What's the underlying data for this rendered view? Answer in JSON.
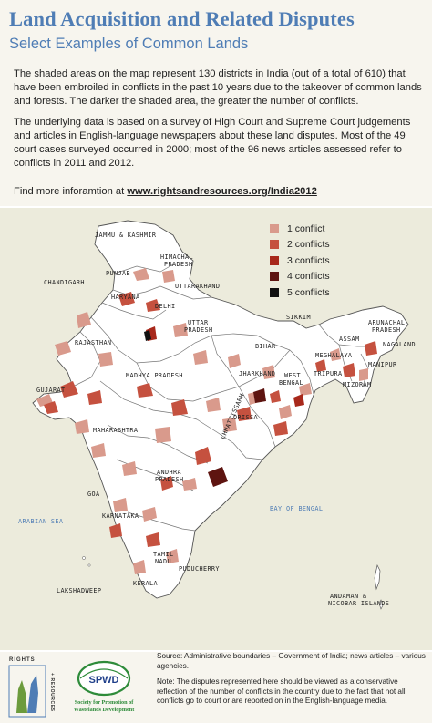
{
  "title": "Land Acquisition and Related Disputes",
  "subtitle": "Select Examples of Common Lands",
  "paragraphs": {
    "p1": "The shaded areas on the map represent 130 districts in India (out of a total of 610) that have been embroiled in conflicts in the past 10 years due to the takeover of common lands and forests. The darker the shaded area, the greater the number of conflicts.",
    "p2": "The underlying data is based on a survey of High Court and Supreme Court judgements and articles in English-language newspapers about these land disputes. Most of the 49 court cases surveyed occurred in 2000; most of the 96 news articles assessed refer to conflicts in 2011 and 2012.",
    "p3_prefix": "Find more inforamtion at ",
    "p3_link": "www.rightsandresources.org/India2012"
  },
  "legend": [
    {
      "label": "1 conflict",
      "color": "#d99a8c"
    },
    {
      "label": "2 conflicts",
      "color": "#c5513f"
    },
    {
      "label": "3 conflicts",
      "color": "#a8281b"
    },
    {
      "label": "4 conflicts",
      "color": "#5e1410"
    },
    {
      "label": "5 conflicts",
      "color": "#111111"
    }
  ],
  "map": {
    "land_color": "#ffffff",
    "region_labels": {
      "jammu_kashmir": "JAMMU & KASHMIR",
      "himachal_1": "HIMACHAL",
      "himachal_2": "PRADESH",
      "punjab": "PUNJAB",
      "chandigarh": "CHANDIGARH",
      "uttarakhand": "UTTARAKHAND",
      "haryana": "HARYANA",
      "delhi": "DELHI",
      "uttar_1": "UTTAR",
      "uttar_2": "PRADESH",
      "rajasthan": "RAJASTHAN",
      "sikkim": "SIKKIM",
      "arunachal_1": "ARUNACHAL",
      "arunachal_2": "PRADESH",
      "assam": "ASSAM",
      "nagaland": "NAGALAND",
      "bihar": "BIHAR",
      "meghalaya": "MEGHALAYA",
      "manipur": "MANIPUR",
      "jharkhand": "JHARKHAND",
      "tripura": "TRIPURA",
      "west_1": "WEST",
      "west_2": "BENGAL",
      "mizoram": "MIZORAM",
      "madhya": "MADHYA PRADESH",
      "gujarat": "GUJARAT",
      "chhattisgarh": "CHHATTISGARH",
      "orissa": "ORISSA",
      "maharashtra": "MAHARASHTRA",
      "andhra_1": "ANDHRA",
      "andhra_2": "PRADESH",
      "goa": "GOA",
      "karnataka": "KARNATAKA",
      "puducherry": "PUDUCHERRY",
      "tamil_1": "TAMIL",
      "tamil_2": "NADU",
      "kerala": "KERALA",
      "lakshadweep": "LAKSHADWEEP",
      "andaman_1": "ANDAMAN &",
      "andaman_2": "NICOBAR ISLANDS"
    },
    "seas": {
      "arabian": "ARABIAN SEA",
      "bengal": "BAY OF BENGAL"
    }
  },
  "footer": {
    "source": "Source: Administrative boundaries – Government of India; news articles – various agencies.",
    "note": "Note: The disputes represented here should be viewed as a conservative reflection of the number of conflicts in the country due to the fact that not all conflicts go to court or are reported on in the English-language media.",
    "logo_rights": "RIGHTS",
    "logo_resources": "+ RESOURCES",
    "logo_spwd": "SPWD",
    "logo_spwd_sub1": "Society for Promotion of",
    "logo_spwd_sub2": "Wastelands Development"
  }
}
